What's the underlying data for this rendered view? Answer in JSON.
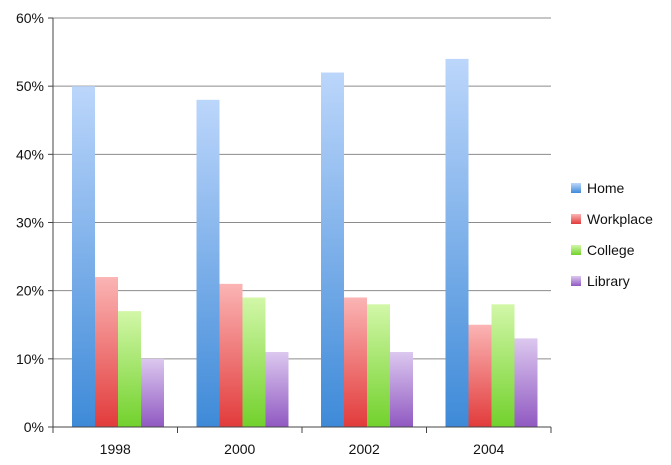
{
  "chart_data": {
    "type": "bar",
    "title": "",
    "xlabel": "",
    "ylabel": "",
    "categories": [
      "1998",
      "2000",
      "2002",
      "2004"
    ],
    "series": [
      {
        "name": "Home",
        "values": [
          50,
          48,
          52,
          54
        ],
        "color_light": "#bcd6fb",
        "color_dark": "#3e8ad8"
      },
      {
        "name": "Workplace",
        "values": [
          22,
          21,
          19,
          15
        ],
        "color_light": "#fbb4b4",
        "color_dark": "#e23b3b"
      },
      {
        "name": "College",
        "values": [
          17,
          19,
          18,
          18
        ],
        "color_light": "#d2f7a8",
        "color_dark": "#72d12c"
      },
      {
        "name": "Library",
        "values": [
          10,
          11,
          11,
          13
        ],
        "color_light": "#dcc8ef",
        "color_dark": "#9059c2"
      }
    ],
    "ylim": [
      0,
      60
    ],
    "yticks": [
      0,
      10,
      20,
      30,
      40,
      50,
      60
    ],
    "ytick_labels": [
      "0%",
      "10%",
      "20%",
      "30%",
      "40%",
      "50%",
      "60%"
    ],
    "grid": true,
    "legend_position": "right"
  }
}
